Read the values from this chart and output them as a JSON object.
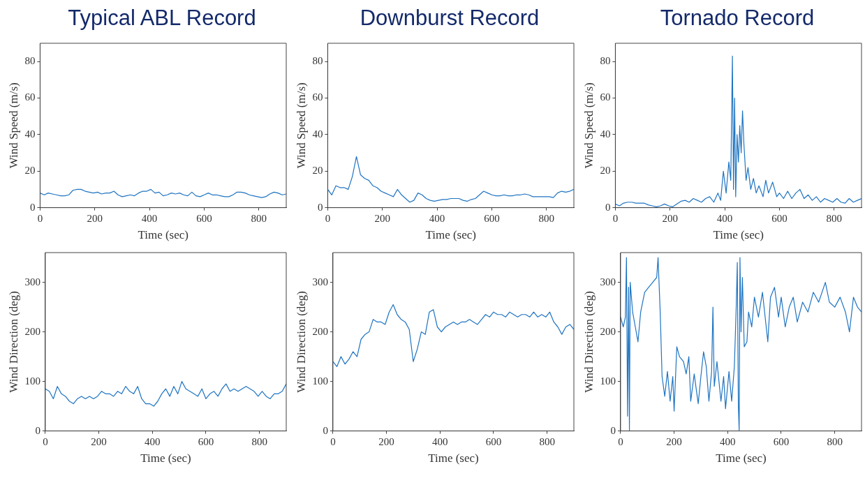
{
  "chart_data": [
    {
      "type": "line",
      "title": "Typical ABL Record",
      "xlabel": "Time (sec)",
      "ylabel": "Wind Speed (m/s)",
      "color": "#1f74c2",
      "grid": false,
      "xlim": [
        0,
        900
      ],
      "xticks": [
        0,
        200,
        400,
        600,
        800
      ],
      "ylim": [
        0,
        90
      ],
      "yticks": [
        0,
        20,
        40,
        60,
        80
      ],
      "x": [
        0,
        15,
        30,
        45,
        60,
        75,
        90,
        105,
        120,
        135,
        150,
        165,
        180,
        195,
        210,
        225,
        240,
        255,
        270,
        285,
        300,
        315,
        330,
        345,
        360,
        375,
        390,
        405,
        420,
        435,
        450,
        465,
        480,
        495,
        510,
        525,
        540,
        555,
        570,
        585,
        600,
        615,
        630,
        645,
        660,
        675,
        690,
        705,
        720,
        735,
        750,
        765,
        780,
        795,
        810,
        825,
        840,
        855,
        870,
        885,
        900
      ],
      "values": [
        8,
        7,
        8,
        7.5,
        7,
        6.5,
        6.5,
        7,
        9.5,
        10,
        10,
        9,
        8.5,
        8,
        8.5,
        7.5,
        8,
        8,
        9,
        7,
        6,
        6.5,
        7,
        6.5,
        8,
        9,
        9,
        10,
        8,
        8.5,
        6.5,
        7,
        8,
        7.5,
        8,
        7,
        6.5,
        8.5,
        6.5,
        6,
        7,
        8,
        7,
        7,
        6.5,
        6,
        6,
        7,
        8.5,
        8.5,
        8,
        7,
        6.5,
        6,
        5.5,
        6,
        7.5,
        8.5,
        8,
        7,
        7.5
      ]
    },
    {
      "type": "line",
      "title": "Downburst Record",
      "xlabel": "Time (sec)",
      "ylabel": "Wind Speed (m/s)",
      "color": "#1f74c2",
      "grid": false,
      "xlim": [
        0,
        900
      ],
      "xticks": [
        0,
        200,
        400,
        600,
        800
      ],
      "ylim": [
        0,
        90
      ],
      "yticks": [
        0,
        20,
        40,
        60,
        80
      ],
      "x": [
        0,
        15,
        30,
        45,
        60,
        75,
        90,
        105,
        120,
        135,
        150,
        165,
        180,
        195,
        210,
        225,
        240,
        255,
        270,
        285,
        300,
        315,
        330,
        345,
        360,
        375,
        390,
        405,
        420,
        435,
        450,
        465,
        480,
        495,
        510,
        525,
        540,
        555,
        570,
        585,
        600,
        615,
        630,
        645,
        660,
        675,
        690,
        705,
        720,
        735,
        750,
        765,
        780,
        795,
        810,
        825,
        840,
        855,
        870,
        885,
        900
      ],
      "values": [
        10,
        7,
        12,
        11,
        11,
        10,
        17,
        28,
        18,
        16,
        15,
        12,
        11,
        9,
        8,
        7,
        6,
        10,
        7,
        5,
        3,
        4,
        8,
        7,
        5,
        4,
        3.5,
        4,
        4.5,
        4.5,
        5,
        5,
        5,
        4,
        3.5,
        4.5,
        5,
        7,
        9,
        8,
        7,
        6.5,
        6.5,
        7,
        6.5,
        6.5,
        7,
        7,
        7.5,
        7,
        6,
        6,
        6,
        6,
        6,
        5.5,
        8,
        9,
        8.5,
        9,
        10
      ]
    },
    {
      "type": "line",
      "title": "Tornado Record",
      "xlabel": "Time (sec)",
      "ylabel": "Wind Speed (m/s)",
      "color": "#1f74c2",
      "grid": false,
      "xlim": [
        0,
        900
      ],
      "xticks": [
        0,
        200,
        400,
        600,
        800
      ],
      "ylim": [
        0,
        90
      ],
      "yticks": [
        0,
        20,
        40,
        60,
        80
      ],
      "x": [
        0,
        15,
        30,
        45,
        60,
        75,
        90,
        105,
        120,
        135,
        150,
        165,
        180,
        195,
        210,
        225,
        240,
        255,
        270,
        285,
        300,
        315,
        330,
        345,
        360,
        375,
        385,
        395,
        405,
        415,
        422,
        428,
        432,
        436,
        440,
        445,
        450,
        455,
        460,
        465,
        470,
        478,
        485,
        495,
        505,
        515,
        525,
        540,
        550,
        560,
        575,
        590,
        600,
        615,
        630,
        645,
        660,
        675,
        690,
        705,
        720,
        735,
        750,
        765,
        780,
        795,
        810,
        825,
        840,
        855,
        870,
        885,
        900
      ],
      "values": [
        2,
        1,
        2.5,
        3,
        3,
        2.5,
        2.5,
        2.5,
        1.5,
        1,
        0.5,
        1,
        2,
        1,
        0.5,
        2,
        3.5,
        4,
        3,
        5,
        4,
        3,
        5,
        6,
        3,
        8,
        4,
        20,
        8,
        25,
        15,
        83,
        10,
        60,
        6,
        40,
        25,
        45,
        30,
        53,
        35,
        15,
        22,
        10,
        16,
        8,
        12,
        6,
        15,
        8,
        14,
        6,
        8,
        5,
        9,
        5,
        8,
        10,
        5,
        7,
        4,
        6,
        3,
        5,
        4,
        3,
        5,
        3,
        2.5,
        5,
        3,
        4,
        5
      ]
    },
    {
      "type": "line",
      "xlabel": "Time (sec)",
      "ylabel": "Wind Direction (deg)",
      "color": "#1f74c2",
      "grid": false,
      "xlim": [
        0,
        900
      ],
      "xticks": [
        0,
        200,
        400,
        600,
        800
      ],
      "ylim": [
        0,
        360
      ],
      "yticks": [
        0,
        100,
        200,
        300
      ],
      "x": [
        0,
        15,
        30,
        45,
        60,
        75,
        90,
        105,
        120,
        135,
        150,
        165,
        180,
        195,
        210,
        225,
        240,
        255,
        270,
        285,
        300,
        315,
        330,
        345,
        360,
        375,
        390,
        405,
        420,
        435,
        450,
        465,
        480,
        495,
        510,
        525,
        540,
        555,
        570,
        585,
        600,
        615,
        630,
        645,
        660,
        675,
        690,
        705,
        720,
        735,
        750,
        765,
        780,
        795,
        810,
        825,
        840,
        855,
        870,
        885,
        900
      ],
      "values": [
        85,
        80,
        65,
        90,
        75,
        70,
        60,
        55,
        65,
        70,
        65,
        70,
        65,
        70,
        80,
        75,
        75,
        70,
        80,
        75,
        90,
        80,
        75,
        90,
        65,
        55,
        55,
        50,
        60,
        75,
        85,
        70,
        90,
        75,
        100,
        85,
        80,
        75,
        70,
        85,
        65,
        75,
        80,
        70,
        85,
        95,
        80,
        85,
        80,
        85,
        90,
        85,
        80,
        70,
        80,
        70,
        65,
        75,
        75,
        80,
        95
      ]
    },
    {
      "type": "line",
      "xlabel": "Time (sec)",
      "ylabel": "Wind Direction (deg)",
      "color": "#1f74c2",
      "grid": false,
      "xlim": [
        0,
        900
      ],
      "xticks": [
        0,
        200,
        400,
        600,
        800
      ],
      "ylim": [
        0,
        360
      ],
      "yticks": [
        0,
        100,
        200,
        300
      ],
      "x": [
        0,
        15,
        30,
        45,
        60,
        75,
        90,
        105,
        120,
        135,
        150,
        165,
        180,
        195,
        210,
        225,
        240,
        255,
        270,
        285,
        300,
        315,
        330,
        345,
        360,
        375,
        390,
        405,
        420,
        435,
        450,
        465,
        480,
        495,
        510,
        525,
        540,
        555,
        570,
        585,
        600,
        615,
        630,
        645,
        660,
        675,
        690,
        705,
        720,
        735,
        750,
        765,
        780,
        795,
        810,
        825,
        840,
        855,
        870,
        885,
        900
      ],
      "values": [
        140,
        130,
        150,
        135,
        145,
        160,
        150,
        185,
        195,
        200,
        225,
        220,
        220,
        215,
        240,
        255,
        235,
        225,
        220,
        205,
        140,
        165,
        200,
        195,
        240,
        245,
        210,
        200,
        210,
        215,
        220,
        215,
        220,
        220,
        225,
        220,
        215,
        225,
        235,
        230,
        240,
        235,
        235,
        230,
        240,
        235,
        230,
        235,
        235,
        230,
        240,
        230,
        235,
        230,
        240,
        220,
        210,
        195,
        210,
        215,
        205
      ]
    },
    {
      "type": "line",
      "xlabel": "Time (sec)",
      "ylabel": "Wind Direction (deg)",
      "color": "#1f74c2",
      "grid": false,
      "xlim": [
        0,
        900
      ],
      "xticks": [
        0,
        200,
        400,
        600,
        800
      ],
      "ylim": [
        0,
        360
      ],
      "yticks": [
        0,
        100,
        200,
        300
      ],
      "x": [
        0,
        10,
        18,
        22,
        26,
        30,
        33,
        36,
        45,
        55,
        65,
        75,
        90,
        105,
        120,
        135,
        140,
        148,
        155,
        165,
        175,
        185,
        195,
        200,
        210,
        220,
        235,
        245,
        255,
        262,
        275,
        290,
        300,
        310,
        320,
        330,
        340,
        345,
        350,
        360,
        375,
        385,
        392,
        405,
        415,
        425,
        432,
        436,
        440,
        443,
        446,
        450,
        455,
        462,
        472,
        478,
        490,
        500,
        515,
        530,
        550,
        560,
        575,
        590,
        600,
        615,
        630,
        645,
        660,
        680,
        700,
        720,
        740,
        765,
        780,
        800,
        820,
        840,
        855,
        870,
        885,
        900
      ],
      "values": [
        230,
        210,
        230,
        350,
        30,
        290,
        0,
        300,
        240,
        210,
        180,
        240,
        280,
        290,
        300,
        310,
        350,
        240,
        110,
        70,
        120,
        60,
        110,
        40,
        170,
        150,
        140,
        115,
        150,
        60,
        115,
        55,
        110,
        160,
        130,
        60,
        120,
        250,
        90,
        140,
        60,
        110,
        45,
        120,
        60,
        130,
        250,
        340,
        50,
        0,
        350,
        200,
        310,
        170,
        180,
        240,
        210,
        270,
        230,
        280,
        180,
        270,
        290,
        230,
        270,
        210,
        250,
        270,
        220,
        260,
        240,
        280,
        260,
        300,
        260,
        250,
        270,
        240,
        200,
        270,
        250,
        240
      ]
    }
  ]
}
